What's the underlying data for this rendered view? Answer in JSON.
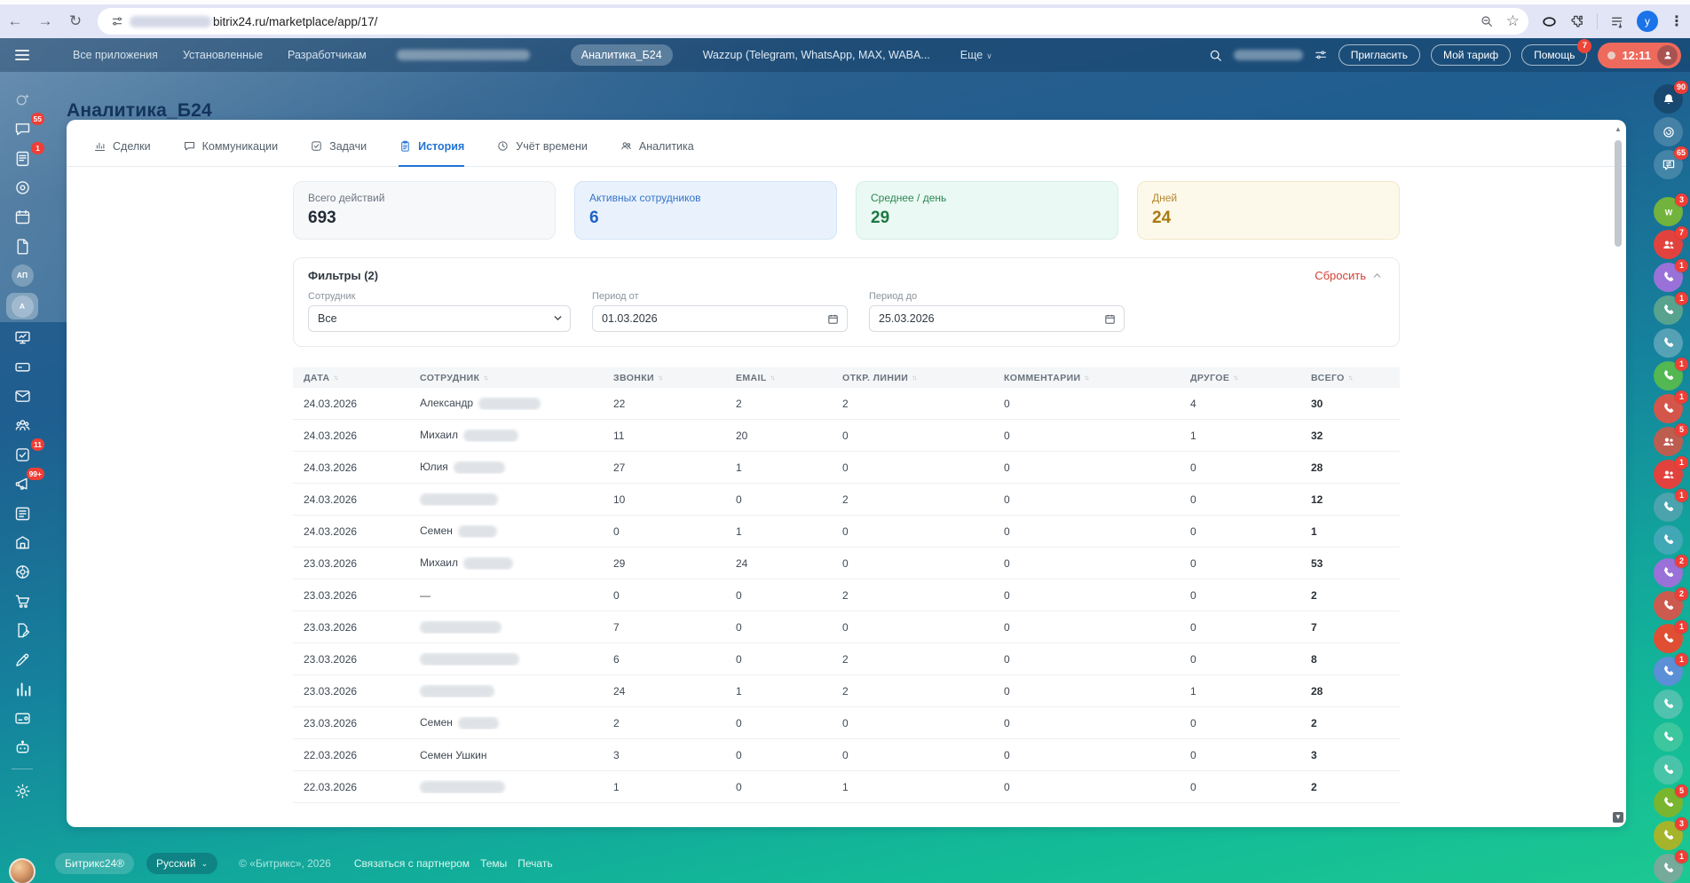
{
  "browser": {
    "url_visible": "bitrix24.ru/marketplace/app/17/",
    "profile_initial": "y"
  },
  "topbar": {
    "menu_items": [
      "Все приложения",
      "Установленные",
      "Разработчикам"
    ],
    "app_tabs": [
      {
        "label": "Аналитика_Б24",
        "active": true
      },
      {
        "label": "Wazzup (Telegram, WhatsApp, MAX, WABA...",
        "active": false
      }
    ],
    "more_label": "Еще",
    "invite_label": "Пригласить",
    "plan_label": "Мой тариф",
    "help_label": "Помощь",
    "help_badge": "7",
    "timer": "12:11"
  },
  "page_title": "Аналитика_Б24",
  "tabs": [
    {
      "label": "Сделки",
      "icon": "bars",
      "active": false
    },
    {
      "label": "Коммуникации",
      "icon": "chat",
      "active": false
    },
    {
      "label": "Задачи",
      "icon": "check-square",
      "active": false
    },
    {
      "label": "История",
      "icon": "clipboard",
      "active": true
    },
    {
      "label": "Учёт времени",
      "icon": "clock",
      "active": false
    },
    {
      "label": "Аналитика",
      "icon": "people-o",
      "active": false
    }
  ],
  "stats": [
    {
      "label": "Всего действий",
      "value": "693",
      "theme": "neutral"
    },
    {
      "label": "Активных сотрудников",
      "value": "6",
      "theme": "blue"
    },
    {
      "label": "Среднее / день",
      "value": "29",
      "theme": "green"
    },
    {
      "label": "Дней",
      "value": "24",
      "theme": "yellow"
    }
  ],
  "filters": {
    "title": "Фильтры (2)",
    "reset_label": "Сбросить",
    "employee_label": "Сотрудник",
    "employee_value": "Все",
    "period_from_label": "Период от",
    "period_from_value": "01.03.2026",
    "period_to_label": "Период до",
    "period_to_value": "25.03.2026"
  },
  "table": {
    "columns": [
      "ДАТА",
      "СОТРУДНИК",
      "ЗВОНКИ",
      "EMAIL",
      "ОТКР. ЛИНИИ",
      "КОММЕНТАРИИ",
      "ДРУГОЕ",
      "ВСЕГО"
    ],
    "rows": [
      {
        "date": "24.03.2026",
        "employee": "Александр",
        "blur": 70,
        "values": [
          "22",
          "2",
          "2",
          "0",
          "4",
          "30"
        ]
      },
      {
        "date": "24.03.2026",
        "employee": "Михаил",
        "blur": 62,
        "values": [
          "11",
          "20",
          "0",
          "0",
          "1",
          "32"
        ]
      },
      {
        "date": "24.03.2026",
        "employee": "Юлия",
        "blur": 58,
        "values": [
          "27",
          "1",
          "0",
          "0",
          "0",
          "28"
        ]
      },
      {
        "date": "24.03.2026",
        "employee": "",
        "blur": 88,
        "values": [
          "10",
          "0",
          "2",
          "0",
          "0",
          "12"
        ]
      },
      {
        "date": "24.03.2026",
        "employee": "Семен",
        "blur": 44,
        "values": [
          "0",
          "1",
          "0",
          "0",
          "0",
          "1"
        ]
      },
      {
        "date": "23.03.2026",
        "employee": "Михаил",
        "blur": 56,
        "values": [
          "29",
          "24",
          "0",
          "0",
          "0",
          "53"
        ]
      },
      {
        "date": "23.03.2026",
        "employee": "—",
        "blur": 0,
        "values": [
          "0",
          "0",
          "2",
          "0",
          "0",
          "2"
        ]
      },
      {
        "date": "23.03.2026",
        "employee": "",
        "blur": 92,
        "values": [
          "7",
          "0",
          "0",
          "0",
          "0",
          "7"
        ]
      },
      {
        "date": "23.03.2026",
        "employee": "",
        "blur": 112,
        "values": [
          "6",
          "0",
          "2",
          "0",
          "0",
          "8"
        ]
      },
      {
        "date": "23.03.2026",
        "employee": "",
        "blur": 84,
        "values": [
          "24",
          "1",
          "2",
          "0",
          "1",
          "28"
        ]
      },
      {
        "date": "23.03.2026",
        "employee": "Семен",
        "blur": 46,
        "values": [
          "2",
          "0",
          "0",
          "0",
          "0",
          "2"
        ]
      },
      {
        "date": "22.03.2026",
        "employee": "Семен Ушкин",
        "blur": 0,
        "values": [
          "3",
          "0",
          "0",
          "0",
          "0",
          "3"
        ]
      },
      {
        "date": "22.03.2026",
        "employee": "",
        "blur": 96,
        "values": [
          "1",
          "0",
          "1",
          "0",
          "0",
          "2"
        ]
      }
    ]
  },
  "footer": {
    "brand": "Битрикс24®",
    "language": "Русский",
    "copyright": "© «Битрикс», 2026",
    "links": [
      "Связаться с партнером",
      "Темы",
      "Печать"
    ]
  },
  "left_sidebar": {
    "items": [
      {
        "icon": "copilot",
        "dim": true
      },
      {
        "icon": "chat",
        "badge": "55"
      },
      {
        "icon": "feed",
        "badge": "1"
      },
      {
        "icon": "disk"
      },
      {
        "icon": "calendar"
      },
      {
        "icon": "docs"
      },
      {
        "icon": "avatar-text",
        "text": "АП"
      },
      {
        "icon": "avatar-text",
        "text": "А",
        "active": true
      },
      {
        "icon": "crm"
      },
      {
        "icon": "drive"
      },
      {
        "icon": "mail"
      },
      {
        "icon": "team"
      },
      {
        "icon": "tasks",
        "badge": "11"
      },
      {
        "icon": "marketing",
        "badge": "99+"
      },
      {
        "icon": "automation"
      },
      {
        "icon": "warehouse"
      },
      {
        "icon": "target"
      },
      {
        "icon": "shop"
      },
      {
        "icon": "sign-doc"
      },
      {
        "icon": "pen"
      },
      {
        "icon": "analytics"
      },
      {
        "icon": "terminal"
      },
      {
        "icon": "bot"
      },
      {
        "icon": "divider"
      },
      {
        "icon": "settings"
      },
      {
        "icon": "user-photo"
      }
    ]
  },
  "right_sidebar": {
    "items": [
      {
        "icon": "bell",
        "badge": "90",
        "bg": "rgba(18,48,78,0.50)"
      },
      {
        "icon": "headset",
        "bg": "rgba(255,255,255,0.18)"
      },
      {
        "icon": "chat-arrows",
        "badge": "65",
        "bg": "rgba(255,255,255,0.18)"
      },
      {
        "icon": "divider"
      },
      {
        "icon": "letter-w",
        "badge": "3",
        "bg": "#71b33c"
      },
      {
        "icon": "people",
        "badge": "7",
        "bg": "#e2423d"
      },
      {
        "icon": "phone",
        "badge": "1",
        "bg": "#9a71d8"
      },
      {
        "icon": "phone",
        "badge": "1",
        "bg": "#58a38e"
      },
      {
        "icon": "phone",
        "bg": "rgba(205,220,228,0.35)"
      },
      {
        "icon": "phone",
        "badge": "1",
        "bg": "#53b752"
      },
      {
        "icon": "phone",
        "badge": "1",
        "bg": "#d4564a"
      },
      {
        "icon": "people",
        "badge": "5",
        "bg": "#bd5d50"
      },
      {
        "icon": "people",
        "badge": "1",
        "bg": "#e2423d"
      },
      {
        "icon": "phone",
        "badge": "1",
        "bg": "#4aa3ad"
      },
      {
        "icon": "phone",
        "bg": "rgba(125,172,215,0.45)"
      },
      {
        "icon": "phone",
        "badge": "2",
        "bg": "#9a71d8"
      },
      {
        "icon": "phone",
        "badge": "2",
        "bg": "#cd5a4e"
      },
      {
        "icon": "phone",
        "badge": "1",
        "bg": "#e04f33"
      },
      {
        "icon": "phone",
        "badge": "1",
        "bg": "#5b8fd6"
      },
      {
        "icon": "phone",
        "bg": "rgba(195,208,216,0.35)"
      },
      {
        "icon": "phone",
        "bg": "rgba(125,212,172,0.40)"
      },
      {
        "icon": "phone",
        "bg": "rgba(195,208,216,0.30)"
      },
      {
        "icon": "phone",
        "badge": "5",
        "bg": "#79b52e"
      },
      {
        "icon": "phone",
        "badge": "3",
        "bg": "#a6b42c"
      },
      {
        "icon": "phone",
        "badge": "1",
        "bg": "rgba(150,160,158,0.75)"
      }
    ]
  }
}
